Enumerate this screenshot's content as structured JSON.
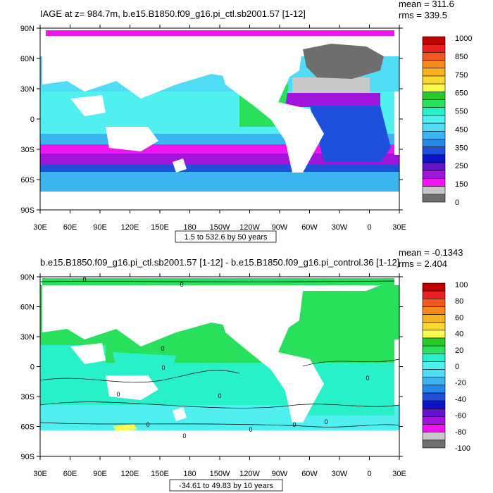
{
  "chart_data": [
    {
      "type": "heatmap",
      "title": "IAGE at z= 984.7m, b.e15.B1850.f09_g16.pi_ctl.sb2001.57 [1-12]",
      "stats": {
        "mean": "mean = 311.6",
        "rms": "rms = 339.5"
      },
      "x_ticks": [
        "30E",
        "60E",
        "90E",
        "120E",
        "150E",
        "180",
        "150W",
        "120W",
        "90W",
        "60W",
        "30W",
        "0",
        "30E"
      ],
      "y_ticks": [
        "90N",
        "60N",
        "30N",
        "0",
        "30S",
        "60S",
        "90S"
      ],
      "xlim": [
        30,
        390
      ],
      "ylim": [
        -90,
        90
      ],
      "colorbar_labels": [
        "1000",
        "850",
        "750",
        "650",
        "550",
        "450",
        "350",
        "250",
        "150",
        "0"
      ],
      "colorbar_colors": [
        "#c00000",
        "#e82020",
        "#f05a1e",
        "#f58a1e",
        "#f7b020",
        "#f8d830",
        "#fafa50",
        "#28c828",
        "#28e05c",
        "#28f0c8",
        "#50f0f0",
        "#50dcf5",
        "#3cb4f0",
        "#2888e8",
        "#1e50dc",
        "#0a14c8",
        "#6414c8",
        "#a014dc",
        "#f014f0",
        "#c8c8c8",
        "#6e6e6e"
      ],
      "range_label": "1.5 to 532.6 by 50 years"
    },
    {
      "type": "heatmap",
      "title": "b.e15.B1850.f09_g16.pi_ctl.sb2001.57 [1-12] - b.e15.B1850.f09_g16.pi_control.36 [1-12]",
      "stats": {
        "mean": "mean = -0.1343",
        "rms": "rms = 2.404"
      },
      "x_ticks": [
        "30E",
        "60E",
        "90E",
        "120E",
        "150E",
        "180",
        "150W",
        "120W",
        "90W",
        "60W",
        "30W",
        "0",
        "30E"
      ],
      "y_ticks": [
        "90N",
        "60N",
        "30N",
        "0",
        "30S",
        "60S",
        "90S"
      ],
      "xlim": [
        30,
        390
      ],
      "ylim": [
        -90,
        90
      ],
      "colorbar_labels": [
        "100",
        "80",
        "60",
        "40",
        "20",
        "0",
        "-20",
        "-40",
        "-60",
        "-80",
        "-100"
      ],
      "colorbar_colors": [
        "#c00000",
        "#e82020",
        "#f05a1e",
        "#f58a1e",
        "#f7b020",
        "#f8d830",
        "#fafa50",
        "#28c828",
        "#28e05c",
        "#28f0c8",
        "#50f0f0",
        "#50dcf5",
        "#3cb4f0",
        "#2888e8",
        "#1e50dc",
        "#0a14c8",
        "#6414c8",
        "#a014dc",
        "#f014f0",
        "#c8c8c8",
        "#6e6e6e"
      ],
      "contour_labels": [
        "0",
        "0",
        "0",
        "0",
        "0",
        "0",
        "0",
        "0",
        "0",
        "0",
        "0",
        "0"
      ],
      "range_label": "-34.61 to 49.83 by 10 years"
    }
  ]
}
